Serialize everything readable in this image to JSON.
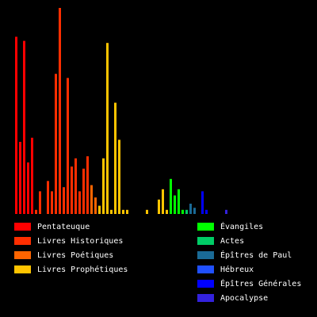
{
  "chart_data": {
    "type": "bar",
    "title": "",
    "xlabel": "",
    "ylabel": "",
    "ylim": [
      0,
      1
    ],
    "grid": false,
    "legend_placement": "bottom",
    "series": [
      {
        "name": "Pentateuque",
        "color": "#ff0000",
        "values": [
          0.86,
          0.35,
          0.84,
          0.25,
          0.37
        ]
      },
      {
        "name": "Livres Historiques",
        "color": "#ff2e00",
        "values": [
          0.02,
          0.11,
          0.0,
          0.16,
          0.11,
          0.68,
          1.0,
          0.13,
          0.66,
          0.23,
          0.27,
          0.11,
          0.22,
          0.28
        ]
      },
      {
        "name": "Livres Poétiques",
        "color": "#ff6500",
        "values": [
          0.14,
          0.08
        ]
      },
      {
        "name": "Livres Prophétiques",
        "color": "#ffc400",
        "values": [
          0.04,
          0.27,
          0.83,
          0.02,
          0.54,
          0.36,
          0.02,
          0.02,
          0.0,
          0.0,
          0.0,
          0.0,
          0.02,
          0.0,
          0.0,
          0.07,
          0.12,
          0.02
        ]
      },
      {
        "name": "Évangiles",
        "color": "#00ff00",
        "values": [
          0.17,
          0.09,
          0.12,
          0.02
        ]
      },
      {
        "name": "Actes",
        "color": "#00cc66",
        "values": [
          0.02
        ]
      },
      {
        "name": "Épîtres de Paul",
        "color": "#1a6a96",
        "values": [
          0.05,
          0.03
        ]
      },
      {
        "name": "Hébreux",
        "color": "#2050ff",
        "values": [
          0.0
        ]
      },
      {
        "name": "Épîtres Générales",
        "color": "#0000ff",
        "values": [
          0.11,
          0.02
        ]
      },
      {
        "name": "Apocalypse",
        "color": "#3322dd",
        "values": [
          0.0,
          0.0,
          0.0,
          0.0,
          0.02
        ]
      }
    ]
  }
}
